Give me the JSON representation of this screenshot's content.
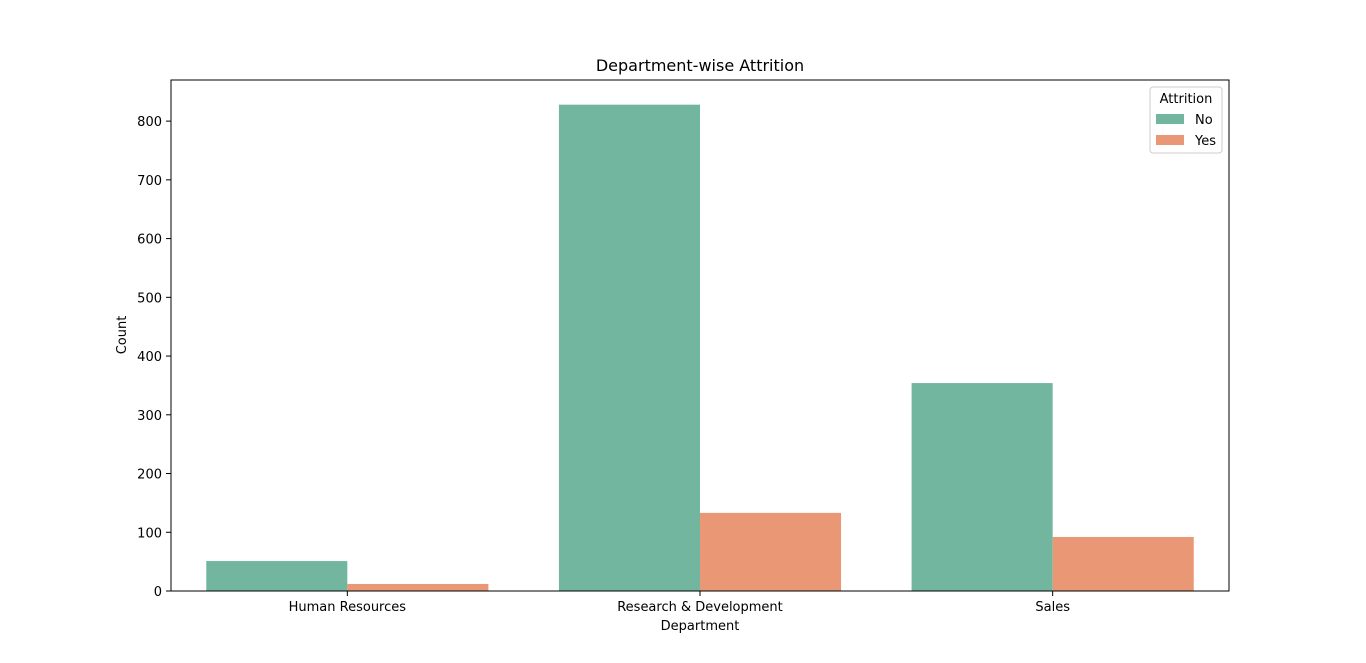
{
  "chart_data": {
    "type": "bar",
    "title": "Department-wise Attrition",
    "xlabel": "Department",
    "ylabel": "Count",
    "categories": [
      "Human Resources",
      "Research & Development",
      "Sales"
    ],
    "series": [
      {
        "name": "No",
        "values": [
          51,
          828,
          354
        ],
        "color": "#73b6a0"
      },
      {
        "name": "Yes",
        "values": [
          12,
          133,
          92
        ],
        "color": "#e99774"
      }
    ],
    "ylim": [
      0,
      870
    ],
    "yticks": [
      0,
      100,
      200,
      300,
      400,
      500,
      600,
      700,
      800
    ],
    "grid": false,
    "legend": {
      "title": "Attrition",
      "placement": "top-right"
    }
  }
}
